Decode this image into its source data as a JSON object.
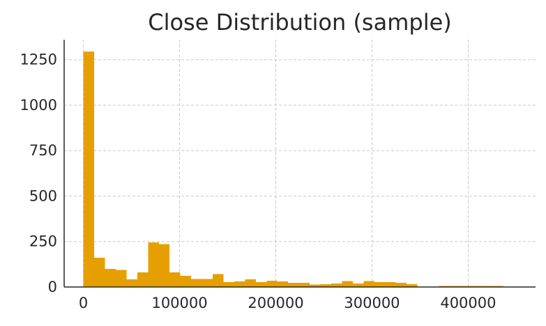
{
  "chart_data": {
    "type": "bar",
    "title": "Close Distribution (sample)",
    "xlabel": "",
    "ylabel": "",
    "xlim": [
      -20000,
      470000
    ],
    "ylim": [
      0,
      1360
    ],
    "grid": true,
    "bar_color": "#E69F00",
    "x_ticks": [
      0,
      100000,
      200000,
      300000,
      400000
    ],
    "x_tick_labels": [
      "0",
      "100000",
      "200000",
      "300000",
      "400000"
    ],
    "y_ticks": [
      0,
      250,
      500,
      750,
      1000,
      1250
    ],
    "y_tick_labels": [
      "0",
      "250",
      "500",
      "750",
      "1000",
      "1250"
    ],
    "bins": [
      {
        "start": 0,
        "end": 11200,
        "count": 1295
      },
      {
        "start": 11200,
        "end": 22400,
        "count": 160
      },
      {
        "start": 22400,
        "end": 33600,
        "count": 100
      },
      {
        "start": 33600,
        "end": 44800,
        "count": 93
      },
      {
        "start": 44800,
        "end": 56000,
        "count": 42
      },
      {
        "start": 56000,
        "end": 67200,
        "count": 80
      },
      {
        "start": 67200,
        "end": 78400,
        "count": 245
      },
      {
        "start": 78400,
        "end": 89600,
        "count": 235
      },
      {
        "start": 89600,
        "end": 100800,
        "count": 80
      },
      {
        "start": 100800,
        "end": 112000,
        "count": 62
      },
      {
        "start": 112000,
        "end": 123200,
        "count": 45
      },
      {
        "start": 123200,
        "end": 134400,
        "count": 45
      },
      {
        "start": 134400,
        "end": 145600,
        "count": 70
      },
      {
        "start": 145600,
        "end": 156800,
        "count": 27
      },
      {
        "start": 156800,
        "end": 168000,
        "count": 30
      },
      {
        "start": 168000,
        "end": 179200,
        "count": 42
      },
      {
        "start": 179200,
        "end": 190400,
        "count": 27
      },
      {
        "start": 190400,
        "end": 201600,
        "count": 35
      },
      {
        "start": 201600,
        "end": 212800,
        "count": 30
      },
      {
        "start": 212800,
        "end": 224000,
        "count": 23
      },
      {
        "start": 224000,
        "end": 235200,
        "count": 23
      },
      {
        "start": 235200,
        "end": 246400,
        "count": 13
      },
      {
        "start": 246400,
        "end": 257600,
        "count": 16
      },
      {
        "start": 257600,
        "end": 268800,
        "count": 20
      },
      {
        "start": 268800,
        "end": 280000,
        "count": 32
      },
      {
        "start": 280000,
        "end": 291200,
        "count": 20
      },
      {
        "start": 291200,
        "end": 302400,
        "count": 32
      },
      {
        "start": 302400,
        "end": 313600,
        "count": 27
      },
      {
        "start": 313600,
        "end": 324800,
        "count": 27
      },
      {
        "start": 324800,
        "end": 336000,
        "count": 23
      },
      {
        "start": 336000,
        "end": 347200,
        "count": 16
      },
      {
        "start": 347200,
        "end": 358400,
        "count": 0
      },
      {
        "start": 358400,
        "end": 369600,
        "count": 0
      },
      {
        "start": 369600,
        "end": 380800,
        "count": 5
      },
      {
        "start": 380800,
        "end": 392000,
        "count": 5
      },
      {
        "start": 392000,
        "end": 403200,
        "count": 5
      },
      {
        "start": 403200,
        "end": 414400,
        "count": 5
      },
      {
        "start": 414400,
        "end": 425600,
        "count": 5
      },
      {
        "start": 425600,
        "end": 436800,
        "count": 5
      }
    ]
  }
}
